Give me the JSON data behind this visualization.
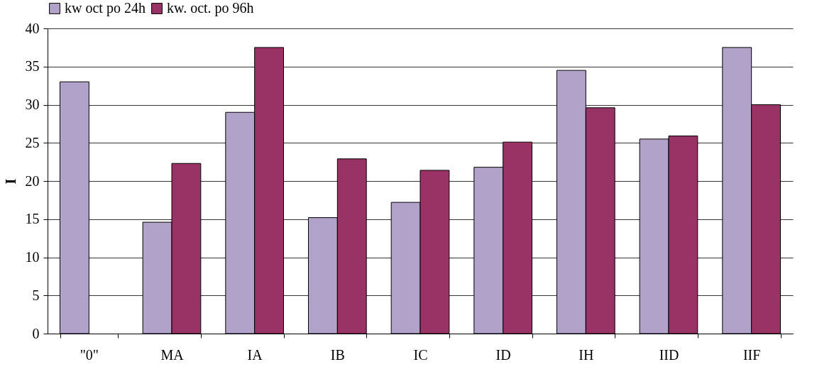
{
  "chart_data": {
    "type": "bar",
    "ylabel": "I",
    "categories": [
      "\"0\"",
      "MA",
      "IA",
      "IB",
      "IC",
      "ID",
      "IH",
      "IID",
      "IIF"
    ],
    "series": [
      {
        "name": "kw oct po 24h",
        "color": "#b0a2c8",
        "values": [
          33.0,
          14.6,
          29.0,
          15.2,
          17.2,
          21.8,
          34.5,
          25.5,
          37.5
        ]
      },
      {
        "name": "kw. oct. po 96h",
        "color": "#993366",
        "values": [
          null,
          22.3,
          37.5,
          22.9,
          21.4,
          25.1,
          29.6,
          25.9,
          30.0
        ]
      }
    ],
    "ylim": [
      0,
      40
    ],
    "yticks": [
      0,
      5,
      10,
      15,
      20,
      25,
      30,
      35,
      40
    ],
    "grid": "y",
    "legend": "top"
  }
}
